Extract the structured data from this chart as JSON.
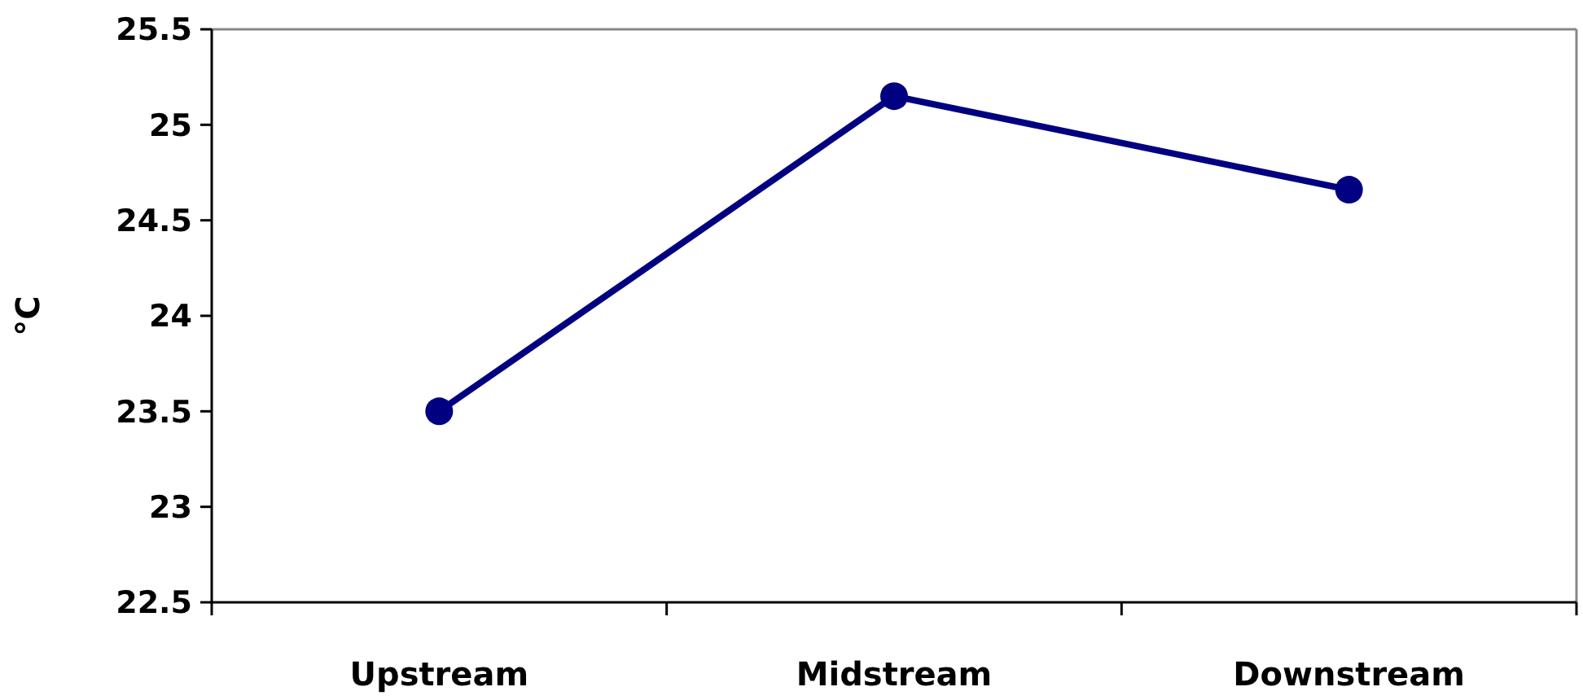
{
  "chart_data": {
    "type": "line",
    "ylabel": "°C",
    "categories": [
      "Upstream",
      "Midstream",
      "Downstream"
    ],
    "series": [
      {
        "color": "#000080",
        "values": [
          23.5,
          25.15,
          24.66
        ]
      }
    ],
    "ylim": [
      22.5,
      25.5
    ],
    "yticks": [
      22.5,
      23,
      23.5,
      24,
      24.5,
      25,
      25.5
    ],
    "grid": false,
    "marker": "circle",
    "line_style": "solid"
  }
}
